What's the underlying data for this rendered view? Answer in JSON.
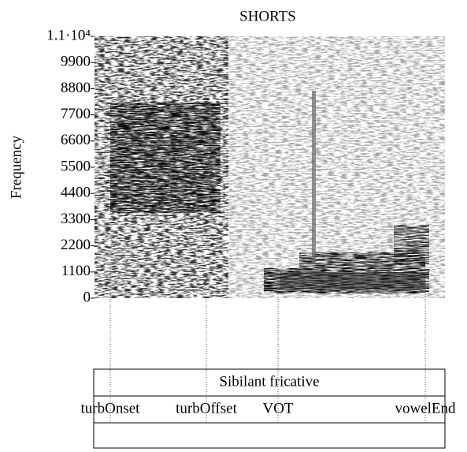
{
  "chart_data": {
    "type": "spectrogram",
    "title": "SHORTS",
    "y_label": "Frequency",
    "ylim": [
      0,
      11000
    ],
    "yticks": [
      0,
      1100,
      2200,
      3300,
      4400,
      5500,
      6600,
      7700,
      8800,
      9900,
      {
        "value": 11000,
        "label": "1.1·10⁴"
      }
    ],
    "tiers": [
      {
        "intervals": [
          "Sibilant fricative"
        ]
      },
      {
        "points": [
          "turbOnset",
          "turbOffset",
          "VOT",
          "vowelEnd"
        ]
      },
      {
        "intervals": []
      }
    ]
  }
}
